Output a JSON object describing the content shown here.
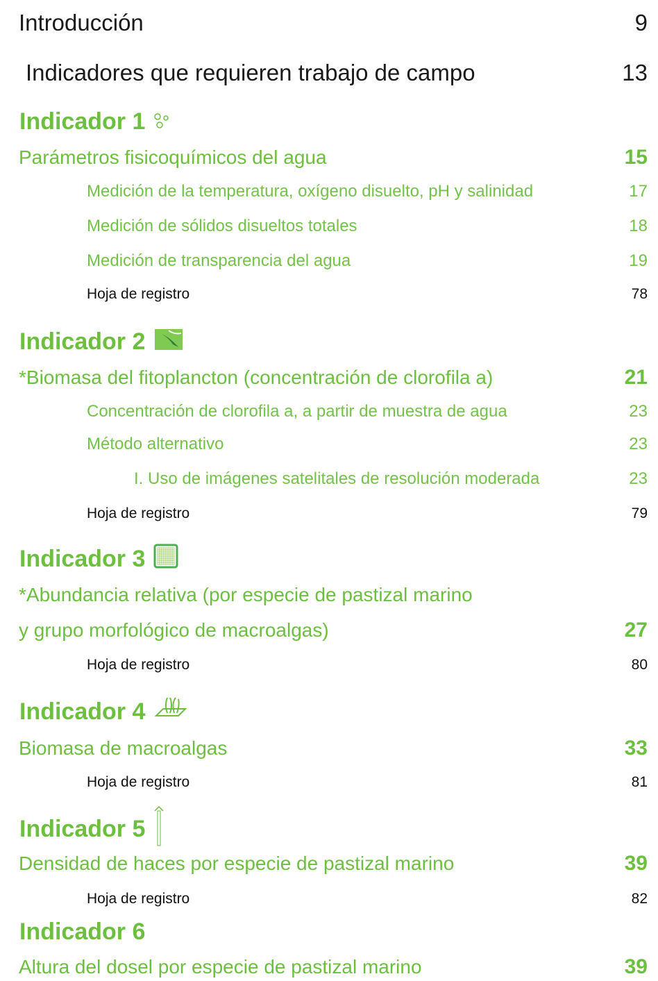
{
  "intro": {
    "title": "Introducción",
    "page": "9"
  },
  "fieldwork": {
    "title": "Indicadores que requieren trabajo de campo",
    "page": "13"
  },
  "indicators": [
    {
      "heading": "Indicador 1",
      "main": {
        "title_lines": [
          "Parámetros fisicoquímicos del agua"
        ],
        "page": "15"
      },
      "subs": [
        {
          "title": "Medición de la temperatura, oxígeno disuelto, pH y salinidad",
          "page": "17"
        },
        {
          "title": "Medición de sólidos disueltos totales",
          "page": "18"
        },
        {
          "title": "Medición de transparencia del agua",
          "page": "19"
        }
      ],
      "record": {
        "title": "Hoja de registro",
        "page": "78"
      }
    },
    {
      "heading": "Indicador 2",
      "main": {
        "title_lines": [
          "*Biomasa del fitoplancton (concentración de clorofila a)"
        ],
        "page": "21"
      },
      "subs": [
        {
          "title": "Concentración de clorofila a, a partir de muestra de agua",
          "page": "23"
        },
        {
          "title": "Método alternativo",
          "page": "23",
          "children": [
            {
              "title": "I. Uso de imágenes satelitales de resolución moderada",
              "page": "23"
            }
          ]
        }
      ],
      "record": {
        "title": "Hoja de registro",
        "page": "79"
      }
    },
    {
      "heading": "Indicador 3",
      "main": {
        "title_lines": [
          "*Abundancia relativa (por especie de pastizal marino",
          "y grupo morfológico de macroalgas)"
        ],
        "page": "27"
      },
      "record": {
        "title": "Hoja de registro",
        "page": "80"
      }
    },
    {
      "heading": "Indicador 4",
      "main": {
        "title_lines": [
          "Biomasa de macroalgas"
        ],
        "page": "33"
      },
      "record": {
        "title": "Hoja de registro",
        "page": "81"
      }
    },
    {
      "heading": "Indicador 5",
      "main": {
        "title_lines": [
          "Densidad de haces por especie de pastizal marino"
        ],
        "page": "39"
      },
      "record": {
        "title": "Hoja de registro",
        "page": "82"
      }
    },
    {
      "heading": "Indicador 6",
      "main": {
        "title_lines": [
          "Altura del dosel por especie de pastizal marino"
        ],
        "page": "39"
      }
    }
  ]
}
